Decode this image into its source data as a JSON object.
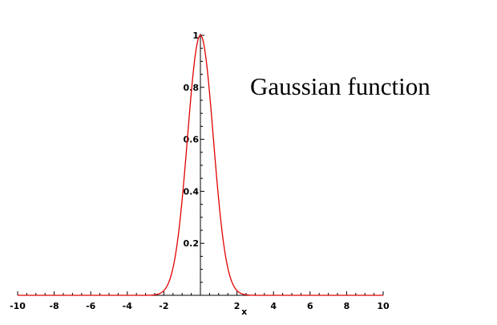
{
  "chart_data": {
    "type": "line",
    "annotation": "Gaussian function",
    "xlabel": "x",
    "ylabel": "",
    "xlim": [
      -10,
      10
    ],
    "ylim": [
      0,
      1
    ],
    "x_ticks": [
      -10,
      -8,
      -6,
      -4,
      -2,
      2,
      4,
      6,
      8,
      10
    ],
    "y_ticks": [
      0.2,
      0.4,
      0.6,
      0.8,
      1
    ],
    "grid": false,
    "legend": "none",
    "series": [
      {
        "color": "#e00000",
        "function": "exp(-x^2)",
        "x": [
          -10,
          -3,
          -2.5,
          -2,
          -1.5,
          -1.25,
          -1,
          -0.75,
          -0.5,
          -0.25,
          0,
          0.25,
          0.5,
          0.75,
          1,
          1.25,
          1.5,
          2,
          2.5,
          3,
          10
        ],
        "y": [
          0,
          0.0001,
          0.0019,
          0.0183,
          0.1054,
          0.2096,
          0.3679,
          0.5698,
          0.7788,
          0.9394,
          1,
          0.9394,
          0.7788,
          0.5698,
          0.3679,
          0.2096,
          0.1054,
          0.0183,
          0.0019,
          0.0001,
          0
        ]
      }
    ]
  }
}
